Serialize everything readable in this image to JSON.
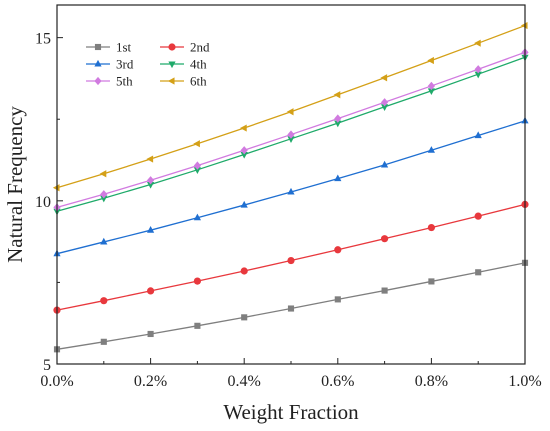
{
  "chart_data": {
    "type": "line",
    "xlabel": "Weight Fraction",
    "ylabel": "Natural Frequency",
    "x": [
      0.0,
      0.1,
      0.2,
      0.3,
      0.4,
      0.5,
      0.6,
      0.7,
      0.8,
      0.9,
      1.0
    ],
    "xlim": [
      0.0,
      1.0
    ],
    "ylim": [
      5,
      16
    ],
    "x_ticks": [
      0.0,
      0.2,
      0.4,
      0.6,
      0.8,
      1.0
    ],
    "x_tick_labels": [
      "0.0%",
      "0.2%",
      "0.4%",
      "0.6%",
      "0.8%",
      "1.0%"
    ],
    "y_ticks": [
      5,
      10,
      15
    ],
    "y_tick_labels": [
      "5",
      "10",
      "15"
    ],
    "grid": false,
    "legend_position": "top-left",
    "series": [
      {
        "name": "1st",
        "color": "#7f7f7f",
        "marker": "square",
        "values": [
          5.45,
          5.68,
          5.92,
          6.17,
          6.43,
          6.7,
          6.98,
          7.25,
          7.53,
          7.81,
          8.1
        ]
      },
      {
        "name": "2nd",
        "color": "#e8383d",
        "marker": "circle",
        "values": [
          6.65,
          6.94,
          7.24,
          7.54,
          7.85,
          8.17,
          8.5,
          8.84,
          9.18,
          9.53,
          9.89
        ]
      },
      {
        "name": "3rd",
        "color": "#1f6fd1",
        "marker": "triangle-up",
        "values": [
          8.38,
          8.74,
          9.1,
          9.48,
          9.87,
          10.27,
          10.68,
          11.1,
          11.55,
          12.0,
          12.45
        ]
      },
      {
        "name": "4th",
        "color": "#1faa6a",
        "marker": "triangle-down",
        "values": [
          9.68,
          10.08,
          10.5,
          10.95,
          11.42,
          11.9,
          12.38,
          12.88,
          13.37,
          13.88,
          14.4
        ]
      },
      {
        "name": "5th",
        "color": "#d17be0",
        "marker": "diamond",
        "values": [
          9.8,
          10.2,
          10.63,
          11.08,
          11.55,
          12.03,
          12.52,
          13.02,
          13.52,
          14.03,
          14.55
        ]
      },
      {
        "name": "6th",
        "color": "#d4a017",
        "marker": "triangle-left",
        "values": [
          10.4,
          10.83,
          11.28,
          11.75,
          12.23,
          12.73,
          13.25,
          13.77,
          14.3,
          14.83,
          15.37
        ]
      }
    ]
  }
}
